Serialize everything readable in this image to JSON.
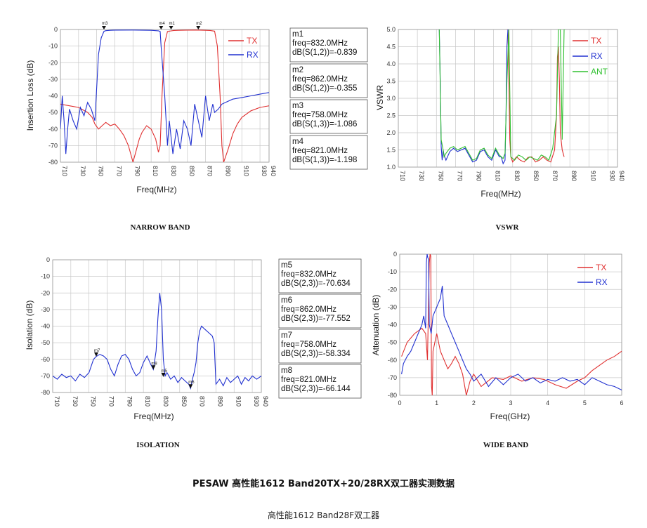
{
  "page": {
    "title": "PESAW 高性能1612 Band20TX+20/28RX双工器实测数据",
    "subtitle": "高性能1612 Band28F双工器"
  },
  "colors": {
    "tx": "#e03030",
    "rx": "#2030d0",
    "ant": "#30c030",
    "grid": "#c8c8c8"
  },
  "chart_data": [
    {
      "id": "narrow",
      "type": "line",
      "caption": "NARROW BAND",
      "xlabel": "Freq(MHz)",
      "ylabel": "Insertion Loss (dB)",
      "xlim": [
        710,
        940
      ],
      "ylim": [
        -80,
        0
      ],
      "xticks": [
        710,
        730,
        750,
        770,
        790,
        810,
        830,
        850,
        870,
        890,
        910,
        930,
        940
      ],
      "xtick_labels": [
        "710",
        "730",
        "750",
        "770",
        "790",
        "810",
        "830",
        "850",
        "870",
        "890",
        "910",
        "930",
        "940"
      ],
      "yticks": [
        0,
        -10,
        -20,
        -30,
        -40,
        -50,
        -60,
        -70,
        -80
      ],
      "ytick_labels": [
        "0",
        "-10",
        "-20",
        "-30",
        "-40",
        "-50",
        "-60",
        "-70",
        "-80"
      ],
      "legend": [
        "TX",
        "RX"
      ],
      "series": [
        {
          "name": "TX",
          "color": "#e03030",
          "x": [
            710,
            720,
            730,
            740,
            745,
            748,
            752,
            756,
            760,
            765,
            770,
            775,
            780,
            785,
            788,
            790,
            793,
            797,
            800,
            805,
            810,
            815,
            818,
            820,
            822,
            825,
            828,
            832,
            835,
            840,
            850,
            860,
            870,
            875,
            880,
            883,
            886,
            888,
            890,
            895,
            900,
            905,
            910,
            920,
            930,
            940
          ],
          "y": [
            -45,
            -46,
            -47,
            -50,
            -53,
            -57,
            -60,
            -58,
            -56,
            -58,
            -57,
            -60,
            -64,
            -70,
            -76,
            -80,
            -74,
            -66,
            -62,
            -58,
            -60,
            -66,
            -74,
            -70,
            -40,
            -8,
            -1.2,
            -0.84,
            -0.6,
            -0.5,
            -0.4,
            -0.355,
            -0.5,
            -0.6,
            -1,
            -10,
            -40,
            -70,
            -80,
            -72,
            -63,
            -57,
            -53,
            -49,
            -47,
            -46
          ]
        },
        {
          "name": "RX",
          "color": "#2030d0",
          "x": [
            710,
            712,
            714,
            716,
            718,
            720,
            724,
            728,
            732,
            736,
            740,
            744,
            748,
            752,
            755,
            758,
            760,
            765,
            770,
            790,
            810,
            818,
            820,
            821,
            825,
            828,
            830,
            834,
            838,
            842,
            846,
            850,
            854,
            858,
            862,
            866,
            870,
            874,
            878,
            880,
            884,
            888,
            892,
            900,
            910,
            920,
            930,
            940
          ],
          "y": [
            -60,
            -40,
            -55,
            -75,
            -60,
            -48,
            -55,
            -60,
            -47,
            -52,
            -44,
            -48,
            -55,
            -15,
            -5,
            -1.086,
            -0.7,
            -0.5,
            -0.4,
            -0.35,
            -0.5,
            -0.8,
            -1.198,
            -10,
            -40,
            -70,
            -55,
            -75,
            -60,
            -72,
            -55,
            -60,
            -70,
            -45,
            -55,
            -65,
            -40,
            -55,
            -45,
            -50,
            -48,
            -45,
            -44,
            -42,
            -41,
            -40,
            -39,
            -38
          ]
        }
      ],
      "markers": [
        {
          "name": "m3",
          "x": 758,
          "y": -1.086,
          "series": "RX"
        },
        {
          "name": "m4",
          "x": 821,
          "y": -1.198,
          "series": "RX"
        },
        {
          "name": "m1",
          "x": 832,
          "y": -0.839,
          "series": "TX"
        },
        {
          "name": "m2",
          "x": 862,
          "y": -0.355,
          "series": "TX"
        }
      ],
      "marker_boxes": [
        {
          "name": "m1",
          "lines": [
            "m1",
            "freq=832.0MHz",
            "dB(S(1,2))=-0.839"
          ]
        },
        {
          "name": "m2",
          "lines": [
            "m2",
            "freq=862.0MHz",
            "dB(S(1,2))=-0.355"
          ]
        },
        {
          "name": "m3",
          "lines": [
            "m3",
            "freq=758.0MHz",
            "dB(S(1,3))=-1.086"
          ]
        },
        {
          "name": "m4",
          "lines": [
            "m4",
            "freq=821.0MHz",
            "dB(S(1,3))=-1.198"
          ]
        }
      ]
    },
    {
      "id": "vswr",
      "type": "line",
      "caption": "VSWR",
      "xlabel": "Freq(MHz)",
      "ylabel": "VSWR",
      "xlim": [
        710,
        940
      ],
      "ylim": [
        1,
        5
      ],
      "xticks": [
        710,
        730,
        750,
        770,
        790,
        810,
        830,
        850,
        870,
        890,
        910,
        930,
        940
      ],
      "xtick_labels": [
        "710",
        "730",
        "750",
        "770",
        "790",
        "810",
        "830",
        "850",
        "870",
        "890",
        "910",
        "930",
        "940"
      ],
      "yticks": [
        1,
        1.5,
        2,
        2.5,
        3,
        3.5,
        4,
        4.5,
        5
      ],
      "ytick_labels": [
        "1.0",
        "1.5",
        "2.0",
        "2.5",
        "3.0",
        "3.5",
        "4.0",
        "4.5",
        "5.0"
      ],
      "legend": [
        "TX",
        "RX",
        "ANT"
      ],
      "series": [
        {
          "name": "TX",
          "color": "#e03030",
          "x": [
            824,
            825,
            826,
            827,
            828,
            830,
            834,
            838,
            842,
            846,
            850,
            854,
            858,
            862,
            866,
            870,
            874,
            876,
            877,
            878,
            879,
            880,
            882,
            884
          ],
          "y": [
            5,
            5,
            3.5,
            1.8,
            1.3,
            1.15,
            1.3,
            1.2,
            1.15,
            1.28,
            1.3,
            1.15,
            1.2,
            1.3,
            1.2,
            1.15,
            1.5,
            2.5,
            4.2,
            4.5,
            3.5,
            2.0,
            1.5,
            1.3
          ]
        },
        {
          "name": "RX",
          "color": "#2030d0",
          "x": [
            753,
            754,
            755,
            756,
            757,
            758,
            760,
            764,
            768,
            772,
            776,
            780,
            784,
            788,
            792,
            796,
            800,
            804,
            808,
            812,
            816,
            818,
            820,
            822,
            823,
            824,
            825
          ],
          "y": [
            5,
            3.5,
            1.6,
            1.2,
            1.5,
            1.35,
            1.2,
            1.45,
            1.55,
            1.45,
            1.5,
            1.55,
            1.35,
            1.15,
            1.2,
            1.45,
            1.5,
            1.3,
            1.2,
            1.5,
            1.3,
            1.3,
            1.1,
            1.2,
            2.5,
            4.5,
            5
          ]
        },
        {
          "name": "ANT",
          "color": "#30c030",
          "x": [
            753,
            755,
            757,
            758,
            760,
            764,
            768,
            772,
            776,
            780,
            784,
            788,
            792,
            796,
            800,
            804,
            808,
            812,
            816,
            820,
            822,
            824,
            826,
            828,
            832,
            836,
            840,
            844,
            848,
            852,
            856,
            860,
            864,
            868,
            872,
            876,
            878,
            880,
            882,
            884,
            885
          ],
          "y": [
            5,
            1.8,
            1.5,
            1.3,
            1.4,
            1.55,
            1.6,
            1.5,
            1.55,
            1.6,
            1.4,
            1.2,
            1.25,
            1.5,
            1.55,
            1.35,
            1.25,
            1.55,
            1.35,
            1.25,
            1.4,
            3.5,
            5,
            1.3,
            1.2,
            1.35,
            1.3,
            1.2,
            1.3,
            1.25,
            1.2,
            1.35,
            1.3,
            1.2,
            1.55,
            2.5,
            5,
            5,
            1.8,
            5,
            5
          ]
        }
      ]
    },
    {
      "id": "isolation",
      "type": "line",
      "caption": "ISOLATION",
      "xlabel": "Freq(MHz)",
      "ylabel": "Isolation (dB)",
      "xlim": [
        710,
        940
      ],
      "ylim": [
        -80,
        0
      ],
      "xticks": [
        710,
        730,
        750,
        770,
        790,
        810,
        830,
        850,
        870,
        890,
        910,
        930,
        940
      ],
      "xtick_labels": [
        "710",
        "730",
        "750",
        "770",
        "790",
        "810",
        "830",
        "850",
        "870",
        "890",
        "910",
        "930",
        "940"
      ],
      "yticks": [
        0,
        -10,
        -20,
        -30,
        -40,
        -50,
        -60,
        -70,
        -80
      ],
      "ytick_labels": [
        "0",
        "-10",
        "-20",
        "-30",
        "-40",
        "-50",
        "-60",
        "-70",
        "-80"
      ],
      "series": [
        {
          "name": "S(2,3)",
          "color": "#2030d0",
          "x": [
            710,
            715,
            720,
            725,
            730,
            735,
            740,
            745,
            750,
            755,
            758,
            762,
            766,
            770,
            774,
            778,
            782,
            786,
            790,
            794,
            798,
            802,
            806,
            810,
            814,
            818,
            821,
            824,
            826,
            828,
            830,
            832,
            834,
            836,
            840,
            844,
            848,
            852,
            856,
            860,
            862,
            864,
            866,
            868,
            870,
            872,
            874,
            878,
            882,
            886,
            888,
            890,
            894,
            898,
            902,
            906,
            910,
            914,
            918,
            922,
            926,
            930,
            935,
            940
          ],
          "y": [
            -70,
            -72,
            -69,
            -71,
            -70,
            -73,
            -69,
            -71,
            -68,
            -60,
            -58.3,
            -57,
            -58,
            -60,
            -66,
            -70,
            -63,
            -58,
            -57,
            -60,
            -66,
            -70,
            -68,
            -62,
            -58,
            -63,
            -66.1,
            -55,
            -35,
            -20,
            -30,
            -60,
            -70,
            -68,
            -72,
            -70,
            -74,
            -71,
            -73,
            -75,
            -77.6,
            -72,
            -68,
            -62,
            -50,
            -43,
            -40,
            -42,
            -44,
            -46,
            -50,
            -75,
            -72,
            -76,
            -71,
            -74,
            -72,
            -70,
            -75,
            -71,
            -73,
            -70,
            -72,
            -70
          ]
        }
      ],
      "markers": [
        {
          "name": "m7",
          "x": 758,
          "y": -58.334
        },
        {
          "name": "m8",
          "x": 821,
          "y": -66.144
        },
        {
          "name": "m5",
          "x": 832,
          "y": -70.634
        },
        {
          "name": "m6",
          "x": 862,
          "y": -77.552
        }
      ],
      "marker_boxes": [
        {
          "name": "m5",
          "lines": [
            "m5",
            "freq=832.0MHz",
            "dB(S(2,3))=-70.634"
          ]
        },
        {
          "name": "m6",
          "lines": [
            "m6",
            "freq=862.0MHz",
            "dB(S(2,3))=-77.552"
          ]
        },
        {
          "name": "m7",
          "lines": [
            "m7",
            "freq=758.0MHz",
            "dB(S(2,3))=-58.334"
          ]
        },
        {
          "name": "m8",
          "lines": [
            "m8",
            "freq=821.0MHz",
            "dB(S(2,3))=-66.144"
          ]
        }
      ]
    },
    {
      "id": "wide",
      "type": "line",
      "caption": "WIDE BAND",
      "xlabel": "Freq(GHz)",
      "ylabel": "Attenuation (dB)",
      "xlim": [
        0,
        6
      ],
      "ylim": [
        -80,
        0
      ],
      "xticks": [
        0,
        1,
        2,
        3,
        4,
        5,
        6
      ],
      "xtick_labels": [
        "0",
        "1",
        "2",
        "3",
        "4",
        "5",
        "6"
      ],
      "yticks": [
        0,
        -10,
        -20,
        -30,
        -40,
        -50,
        -60,
        -70,
        -80
      ],
      "ytick_labels": [
        "0",
        "-10",
        "-20",
        "-30",
        "-40",
        "-50",
        "-60",
        "-70",
        "-80"
      ],
      "legend": [
        "TX",
        "RX"
      ],
      "series": [
        {
          "name": "TX",
          "color": "#e03030",
          "x": [
            0.05,
            0.2,
            0.4,
            0.6,
            0.7,
            0.75,
            0.8,
            0.82,
            0.84,
            0.86,
            0.88,
            0.9,
            0.95,
            1.0,
            1.1,
            1.2,
            1.3,
            1.4,
            1.5,
            1.6,
            1.7,
            1.8,
            1.9,
            2.0,
            2.2,
            2.5,
            2.8,
            3.0,
            3.3,
            3.6,
            3.9,
            4.2,
            4.5,
            4.8,
            5.0,
            5.2,
            5.4,
            5.6,
            5.8,
            6.0
          ],
          "y": [
            -58,
            -50,
            -45,
            -42,
            -45,
            -60,
            -5,
            0,
            -1,
            -75,
            -80,
            -55,
            -50,
            -45,
            -55,
            -60,
            -65,
            -62,
            -58,
            -62,
            -68,
            -80,
            -72,
            -68,
            -75,
            -70,
            -71,
            -69,
            -72,
            -70,
            -71,
            -74,
            -76,
            -72,
            -70,
            -66,
            -63,
            -60,
            -58,
            -55
          ]
        },
        {
          "name": "RX",
          "color": "#2030d0",
          "x": [
            0.05,
            0.1,
            0.2,
            0.3,
            0.4,
            0.5,
            0.6,
            0.65,
            0.7,
            0.72,
            0.74,
            0.76,
            0.78,
            0.8,
            0.85,
            0.9,
            1.0,
            1.1,
            1.15,
            1.2,
            1.3,
            1.4,
            1.5,
            1.6,
            1.7,
            1.8,
            1.9,
            2.0,
            2.2,
            2.4,
            2.6,
            2.8,
            3.0,
            3.2,
            3.4,
            3.6,
            3.8,
            4.0,
            4.2,
            4.4,
            4.6,
            4.8,
            5.0,
            5.2,
            5.4,
            5.6,
            5.8,
            6.0
          ],
          "y": [
            -68,
            -62,
            -58,
            -55,
            -50,
            -45,
            -40,
            -35,
            -42,
            -5,
            0,
            -2,
            -3,
            -40,
            -45,
            -35,
            -30,
            -25,
            -18,
            -35,
            -40,
            -45,
            -50,
            -55,
            -60,
            -65,
            -68,
            -72,
            -68,
            -75,
            -70,
            -74,
            -70,
            -68,
            -72,
            -70,
            -73,
            -71,
            -72,
            -70,
            -72,
            -71,
            -74,
            -70,
            -72,
            -74,
            -75,
            -77
          ]
        }
      ]
    }
  ]
}
